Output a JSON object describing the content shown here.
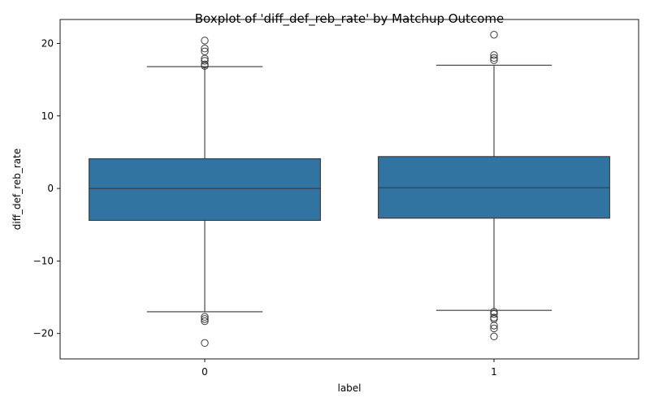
{
  "chart_data": {
    "type": "box",
    "title": "Boxplot of 'diff_def_reb_rate' by Matchup Outcome",
    "xlabel": "label",
    "ylabel": "diff_def_reb_rate",
    "categories": [
      "0",
      "1"
    ],
    "ylim": [
      -23.5,
      23.3
    ],
    "yticks": [
      20,
      10,
      0,
      -10,
      -20
    ],
    "ytick_labels": [
      "20",
      "10",
      "0",
      "−10",
      "−20"
    ],
    "grid": false,
    "colors": {
      "box": "#3274a1",
      "line": "#3a3a3a"
    },
    "boxes": [
      {
        "category": "0",
        "q1": -4.4,
        "median": 0.0,
        "q3": 4.1,
        "whisker_low": -17.0,
        "whisker_high": 16.8,
        "outliers": [
          20.4,
          19.3,
          18.9,
          17.9,
          17.6,
          17.1,
          16.9,
          -17.7,
          -18.0,
          -18.3,
          -21.3
        ]
      },
      {
        "category": "1",
        "q1": -4.1,
        "median": 0.1,
        "q3": 4.4,
        "whisker_low": -16.8,
        "whisker_high": 17.0,
        "outliers": [
          21.2,
          18.4,
          18.0,
          17.7,
          -17.0,
          -17.3,
          -17.8,
          -18.0,
          -18.9,
          -19.3,
          -20.4
        ]
      }
    ]
  }
}
